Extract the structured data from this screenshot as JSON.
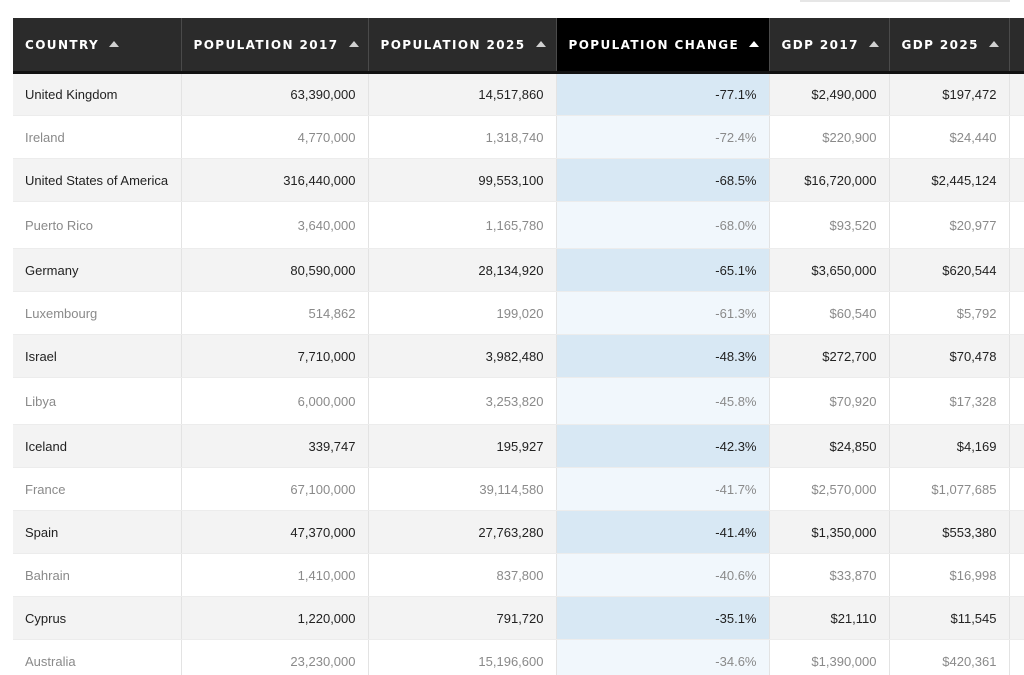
{
  "table": {
    "columns": [
      {
        "key": "country",
        "label": "COUNTRY"
      },
      {
        "key": "pop2017",
        "label": "POPULATION 2017"
      },
      {
        "key": "pop2025",
        "label": "POPULATION 2025"
      },
      {
        "key": "change",
        "label": "POPULATION CHANGE"
      },
      {
        "key": "gdp2017",
        "label": "GDP 2017"
      },
      {
        "key": "gdp2025",
        "label": "GDP 2025"
      }
    ],
    "sorted_column": "change",
    "rows": [
      {
        "country": "United Kingdom",
        "pop2017": "63,390,000",
        "pop2025": "14,517,860",
        "change": "-77.1%",
        "gdp2017": "$2,490,000",
        "gdp2025": "$197,472"
      },
      {
        "country": "Ireland",
        "pop2017": "4,770,000",
        "pop2025": "1,318,740",
        "change": "-72.4%",
        "gdp2017": "$220,900",
        "gdp2025": "$24,440"
      },
      {
        "country": "United States of America",
        "pop2017": "316,440,000",
        "pop2025": "99,553,100",
        "change": "-68.5%",
        "gdp2017": "$16,720,000",
        "gdp2025": "$2,445,124"
      },
      {
        "country": "Puerto Rico",
        "pop2017": "3,640,000",
        "pop2025": "1,165,780",
        "change": "-68.0%",
        "gdp2017": "$93,520",
        "gdp2025": "$20,977"
      },
      {
        "country": "Germany",
        "pop2017": "80,590,000",
        "pop2025": "28,134,920",
        "change": "-65.1%",
        "gdp2017": "$3,650,000",
        "gdp2025": "$620,544"
      },
      {
        "country": "Luxembourg",
        "pop2017": "514,862",
        "pop2025": "199,020",
        "change": "-61.3%",
        "gdp2017": "$60,540",
        "gdp2025": "$5,792"
      },
      {
        "country": "Israel",
        "pop2017": "7,710,000",
        "pop2025": "3,982,480",
        "change": "-48.3%",
        "gdp2017": "$272,700",
        "gdp2025": "$70,478"
      },
      {
        "country": "Libya",
        "pop2017": "6,000,000",
        "pop2025": "3,253,820",
        "change": "-45.8%",
        "gdp2017": "$70,920",
        "gdp2025": "$17,328"
      },
      {
        "country": "Iceland",
        "pop2017": "339,747",
        "pop2025": "195,927",
        "change": "-42.3%",
        "gdp2017": "$24,850",
        "gdp2025": "$4,169"
      },
      {
        "country": "France",
        "pop2017": "67,100,000",
        "pop2025": "39,114,580",
        "change": "-41.7%",
        "gdp2017": "$2,570,000",
        "gdp2025": "$1,077,685"
      },
      {
        "country": "Spain",
        "pop2017": "47,370,000",
        "pop2025": "27,763,280",
        "change": "-41.4%",
        "gdp2017": "$1,350,000",
        "gdp2025": "$553,380"
      },
      {
        "country": "Bahrain",
        "pop2017": "1,410,000",
        "pop2025": "837,800",
        "change": "-40.6%",
        "gdp2017": "$33,870",
        "gdp2025": "$16,998"
      },
      {
        "country": "Cyprus",
        "pop2017": "1,220,000",
        "pop2025": "791,720",
        "change": "-35.1%",
        "gdp2017": "$21,110",
        "gdp2025": "$11,545"
      },
      {
        "country": "Australia",
        "pop2017": "23,230,000",
        "pop2025": "15,196,600",
        "change": "-34.6%",
        "gdp2017": "$1,390,000",
        "gdp2025": "$420,361"
      }
    ]
  },
  "colors": {
    "header_bg": "#2b2b2b",
    "active_header_bg": "#000000",
    "highlight_column": "#d8e8f4",
    "odd_row_bg": "#f3f3f3"
  },
  "icons": {
    "sort": "sort-ascending-icon"
  }
}
